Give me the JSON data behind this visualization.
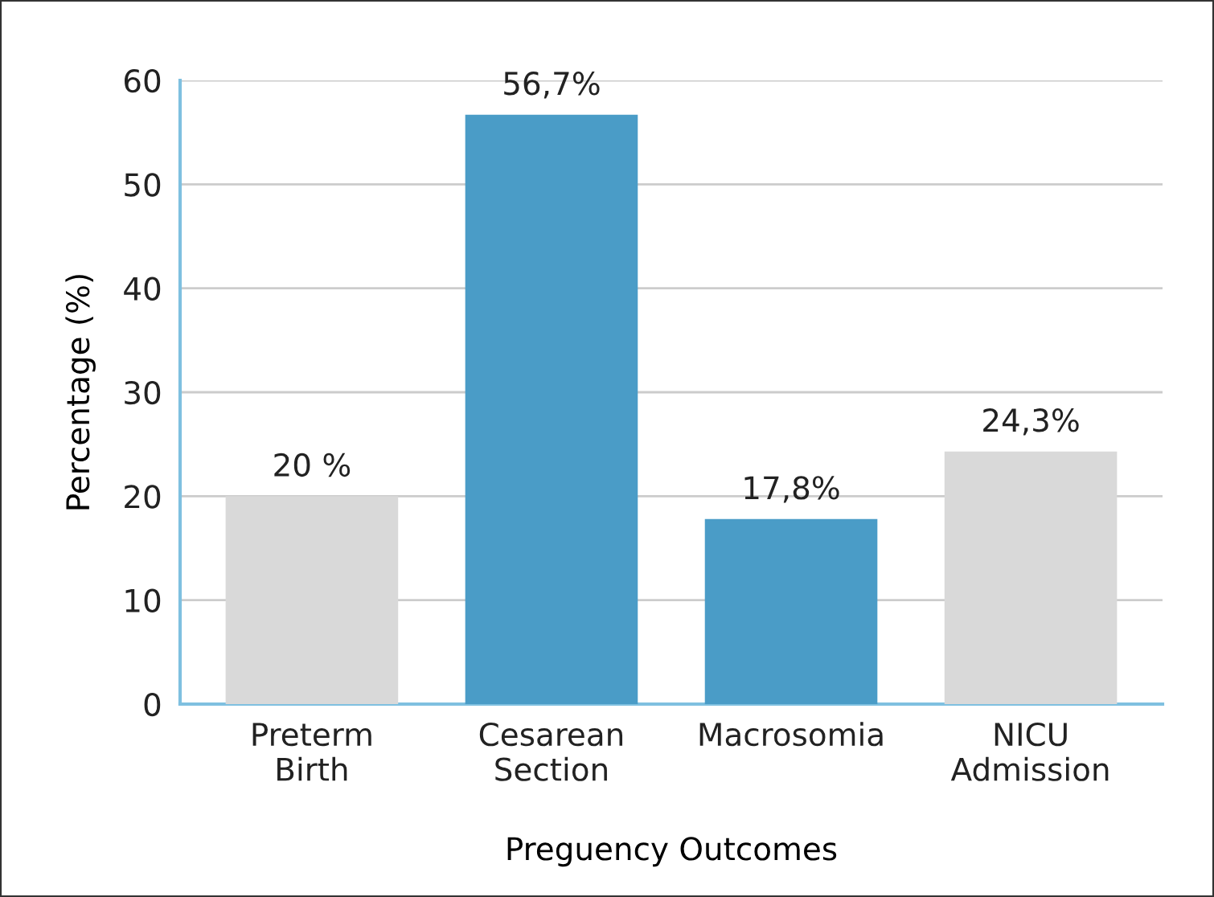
{
  "chart_data": {
    "type": "bar",
    "xlabel": "Preguency Outcomes",
    "ylabel": "Percentage (%)",
    "categories": [
      "Preterm\nBirth",
      "Cesarean\nSection",
      "Macrosomia",
      "NICU\nAdmission"
    ],
    "values": [
      20,
      56.7,
      17.8,
      24.3
    ],
    "colors": [
      "#d9d9d9",
      "#4a9cc7",
      "#4a9cc7",
      "#d9d9d9"
    ],
    "value_labels": [
      "20 %",
      "56,7%",
      "17,8%",
      "24,3%"
    ],
    "ylim": [
      0,
      60
    ],
    "yticks": [
      0,
      10,
      20,
      30,
      40,
      50,
      60
    ],
    "grid": "y",
    "legend": false
  }
}
